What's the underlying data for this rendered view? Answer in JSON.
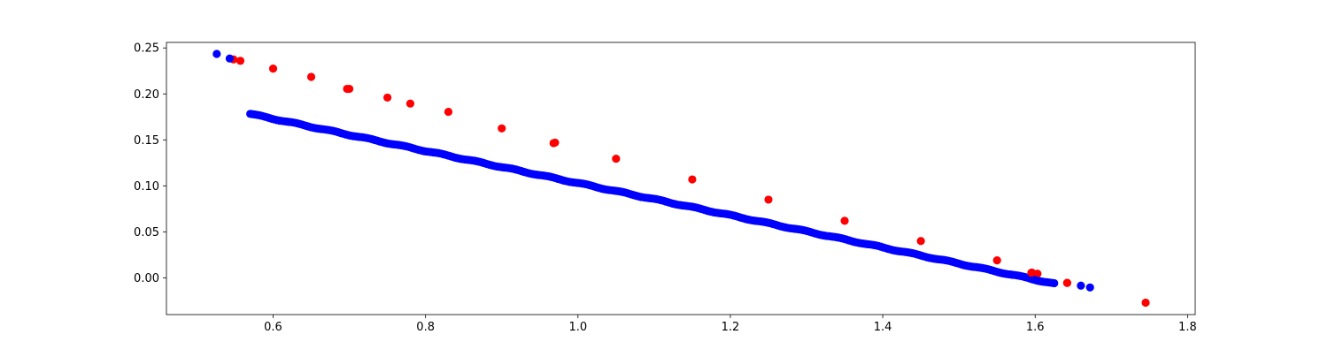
{
  "chart_data": {
    "type": "scatter",
    "title": "",
    "xlabel": "",
    "ylabel": "",
    "xlim": [
      0.46,
      1.81
    ],
    "ylim": [
      -0.04,
      0.256
    ],
    "xticks": [
      0.6,
      0.8,
      1.0,
      1.2,
      1.4,
      1.6,
      1.8
    ],
    "yticks": [
      0.0,
      0.05,
      0.1,
      0.15,
      0.2,
      0.25
    ],
    "xtick_labels": [
      "0.6",
      "0.8",
      "1.0",
      "1.2",
      "1.4",
      "1.6",
      "1.8"
    ],
    "ytick_labels": [
      "0.00",
      "0.05",
      "0.10",
      "0.15",
      "0.20",
      "0.25"
    ],
    "grid": false,
    "legend": "none",
    "line_relation": "y = 0.278 - 0.175 * x",
    "series": [
      {
        "color": "#ff0000",
        "points": [
          [
            0.548,
            0.2375
          ],
          [
            0.557,
            0.236
          ],
          [
            0.6,
            0.2275
          ],
          [
            0.65,
            0.2185
          ],
          [
            0.7,
            0.2055
          ],
          [
            0.75,
            0.196
          ],
          [
            0.78,
            0.1895
          ],
          [
            0.83,
            0.1805
          ],
          [
            0.9,
            0.1625
          ],
          [
            0.97,
            0.147
          ],
          [
            1.05,
            0.1295
          ],
          [
            1.15,
            0.107
          ],
          [
            1.25,
            0.085
          ],
          [
            1.35,
            0.062
          ],
          [
            1.45,
            0.04
          ],
          [
            1.55,
            0.019
          ],
          [
            1.596,
            0.0055
          ],
          [
            1.603,
            0.0045
          ],
          [
            1.642,
            -0.0055
          ],
          [
            1.745,
            -0.027
          ]
        ]
      },
      {
        "color": "#0000ff",
        "x_range": [
          0.57,
          1.625
        ],
        "n_dense": 330,
        "points": [
          [
            0.526,
            0.2435
          ],
          [
            0.543,
            0.2385
          ],
          [
            1.66,
            -0.0085
          ],
          [
            1.672,
            -0.0105
          ]
        ]
      }
    ]
  }
}
